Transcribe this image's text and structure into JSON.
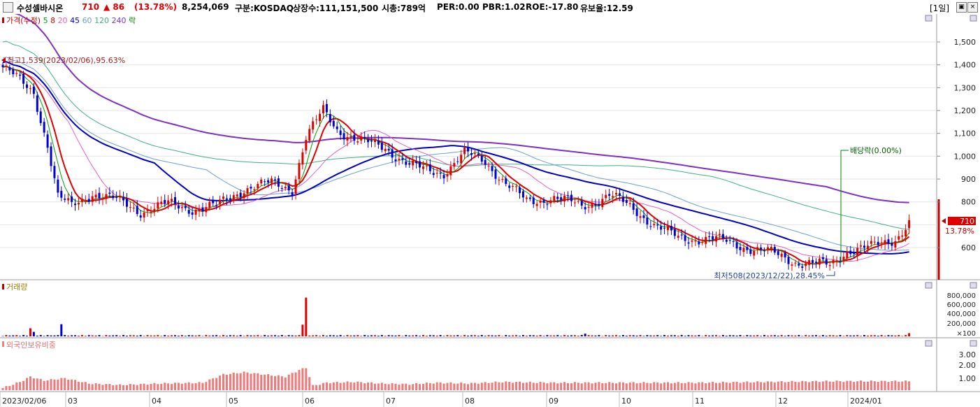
{
  "header": {
    "stock_name": "수성셀바시온",
    "price": "710",
    "change": "▲ 86",
    "change_pct": "(13.78%)",
    "volume": "8,254,069",
    "market": "구분:KOSDAQ",
    "listed_shares": "상장수:111,151,500",
    "market_cap": "시총:789억",
    "per": "PER:0.00",
    "pbr": "PBR:1.02",
    "roe": "ROE:-17.80",
    "float_ratio": "유보율:12.59",
    "period": "[1일]",
    "colors": {
      "up": "#e00000",
      "down": "#0000d0",
      "title": "#000000"
    }
  },
  "price_panel": {
    "legend": [
      {
        "text": "가격(수정)",
        "color": "#c00000"
      },
      {
        "text": "5",
        "color": "#00a000"
      },
      {
        "text": "8",
        "color": "#e00000"
      },
      {
        "text": "20",
        "color": "#e060c0"
      },
      {
        "text": "45",
        "color": "#0000c0"
      },
      {
        "text": "60",
        "color": "#6aa0d0"
      },
      {
        "text": "120",
        "color": "#40b080"
      },
      {
        "text": "240",
        "color": "#8030c0"
      },
      {
        "text": "락",
        "color": "#008000"
      }
    ],
    "high_annotation": "최고1,539(2023/02/06),95.63%",
    "low_annotation": "최저508(2023/12/22),28.45%",
    "dividend_annotation": "배당락(0.00%)",
    "y_ticks": [
      "1,500",
      "1,400",
      "1,300",
      "1,200",
      "1,100",
      "1,000",
      "900",
      "800",
      "700",
      "600"
    ],
    "current_price_tag": "710",
    "current_pct_tag": "13.78%"
  },
  "volume_panel": {
    "legend": "거래량",
    "y_ticks": [
      "800,000",
      "600,000",
      "400,000",
      "200,000",
      "×100"
    ]
  },
  "foreign_panel": {
    "legend": "외국인보유비중",
    "y_ticks": [
      "3.00",
      "2.00",
      "1.00"
    ]
  },
  "x_axis": [
    "2023/02/06",
    "03",
    "04",
    "05",
    "06",
    "07",
    "08",
    "09",
    "10",
    "11",
    "12",
    "2024/01"
  ],
  "chart_data": {
    "type": "candlestick",
    "x_labels": [
      "2023/02/06",
      "03",
      "04",
      "05",
      "06",
      "07",
      "08",
      "09",
      "10",
      "11",
      "12",
      "2024/01"
    ],
    "y_range": [
      470,
      1580
    ],
    "last_price": 710,
    "high": 1539,
    "low": 508,
    "anchors": [
      [
        0,
        1390
      ],
      [
        4,
        1340
      ],
      [
        9,
        1280
      ],
      [
        13,
        1050
      ],
      [
        16,
        820
      ],
      [
        20,
        780
      ],
      [
        26,
        840
      ],
      [
        34,
        800
      ],
      [
        40,
        760
      ],
      [
        48,
        790
      ],
      [
        55,
        770
      ],
      [
        62,
        780
      ],
      [
        70,
        860
      ],
      [
        78,
        880
      ],
      [
        84,
        860
      ],
      [
        88,
        1080
      ],
      [
        93,
        1200
      ],
      [
        97,
        1120
      ],
      [
        104,
        1060
      ],
      [
        111,
        1040
      ],
      [
        118,
        960
      ],
      [
        122,
        940
      ],
      [
        128,
        930
      ],
      [
        134,
        1010
      ],
      [
        140,
        980
      ],
      [
        146,
        880
      ],
      [
        152,
        800
      ],
      [
        160,
        820
      ],
      [
        168,
        780
      ],
      [
        176,
        830
      ],
      [
        184,
        760
      ],
      [
        190,
        690
      ],
      [
        196,
        640
      ],
      [
        205,
        640
      ],
      [
        214,
        610
      ],
      [
        222,
        580
      ],
      [
        230,
        540
      ],
      [
        240,
        520
      ],
      [
        245,
        590
      ],
      [
        252,
        600
      ],
      [
        259,
        640
      ],
      [
        263,
        710
      ]
    ],
    "volume_spikes": [
      [
        8,
        180000
      ],
      [
        9,
        100000
      ],
      [
        17,
        270000
      ],
      [
        87,
        260000
      ],
      [
        88,
        860000
      ],
      [
        169,
        60000
      ],
      [
        263,
        70000
      ]
    ],
    "foreign_ratio": [
      [
        0,
        0.3
      ],
      [
        5,
        1.1
      ],
      [
        8,
        1.8
      ],
      [
        12,
        1.3
      ],
      [
        18,
        1.6
      ],
      [
        25,
        0.9
      ],
      [
        34,
        0.7
      ],
      [
        46,
        0.9
      ],
      [
        58,
        1.0
      ],
      [
        64,
        2.1
      ],
      [
        70,
        2.4
      ],
      [
        76,
        2.1
      ],
      [
        82,
        1.8
      ],
      [
        86,
        2.7
      ],
      [
        88,
        3.0
      ],
      [
        90,
        0.6
      ],
      [
        94,
        1.0
      ],
      [
        102,
        1.1
      ],
      [
        110,
        0.9
      ],
      [
        118,
        0.8
      ],
      [
        126,
        1.0
      ],
      [
        135,
        0.9
      ],
      [
        145,
        1.1
      ],
      [
        160,
        1.0
      ],
      [
        180,
        1.0
      ],
      [
        200,
        1.0
      ],
      [
        220,
        1.1
      ],
      [
        240,
        1.2
      ],
      [
        263,
        1.2
      ]
    ]
  }
}
